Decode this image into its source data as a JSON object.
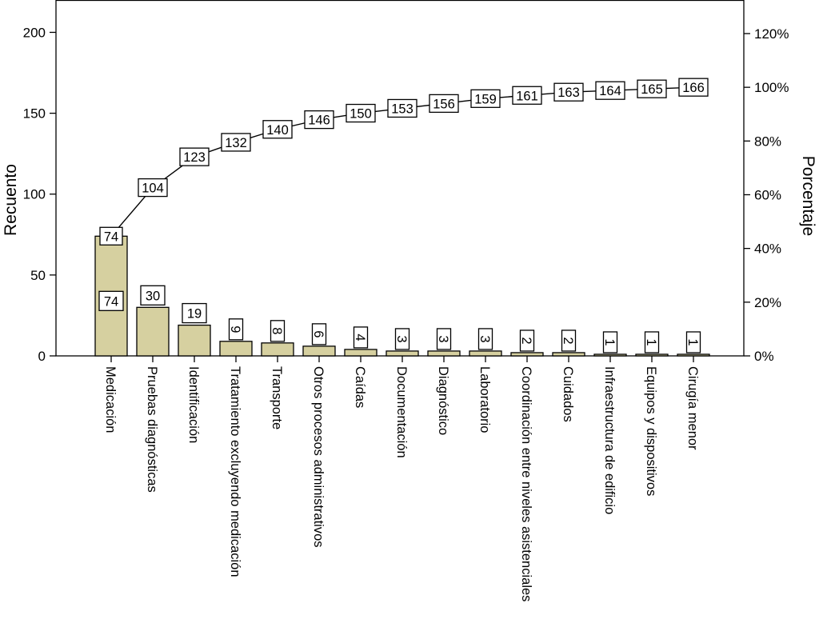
{
  "chart_data": {
    "type": "bar",
    "subtype": "pareto",
    "title": "",
    "categories": [
      "Medicación",
      "Pruebas diagnósticas",
      "Identificación",
      "Tratamiento excluyendo medicación",
      "Transporte",
      "Otros procesos administrativos",
      "Caídas",
      "Documentación",
      "Diagnóstico",
      "Laboratorio",
      "Coordinación entre niveles asistenciales",
      "Cuidados",
      "Infraestructura de edificio",
      "Equipos y dispositivos",
      "Cirugía menor"
    ],
    "series": [
      {
        "type": "bar",
        "axis": "left",
        "values": [
          74,
          30,
          19,
          9,
          8,
          6,
          4,
          3,
          3,
          3,
          2,
          2,
          1,
          1,
          1
        ]
      },
      {
        "type": "line",
        "axis": "right",
        "values": [
          74,
          104,
          123,
          132,
          140,
          146,
          150,
          153,
          156,
          159,
          161,
          163,
          164,
          165,
          166
        ]
      }
    ],
    "ylabel": "Recuento",
    "y2label": "Porcentaje",
    "ylim": [
      0,
      220
    ],
    "y_ticks": [
      0,
      50,
      100,
      150,
      200
    ],
    "y_tick_labels": [
      "0",
      "50",
      "100",
      "150",
      "200"
    ],
    "y2lim_percent": [
      0,
      132.5
    ],
    "y2_ticks_percent": [
      0,
      20,
      40,
      60,
      80,
      100,
      120
    ],
    "y2_tick_labels": [
      "0%",
      "20%",
      "40%",
      "60%",
      "80%",
      "100%",
      "120%"
    ],
    "grid": false,
    "legend": "none",
    "colors": {
      "bar_fill": "#d6d0a0",
      "bar_stroke": "#000000",
      "line": "#000000",
      "label_box": "#ffffff"
    }
  }
}
